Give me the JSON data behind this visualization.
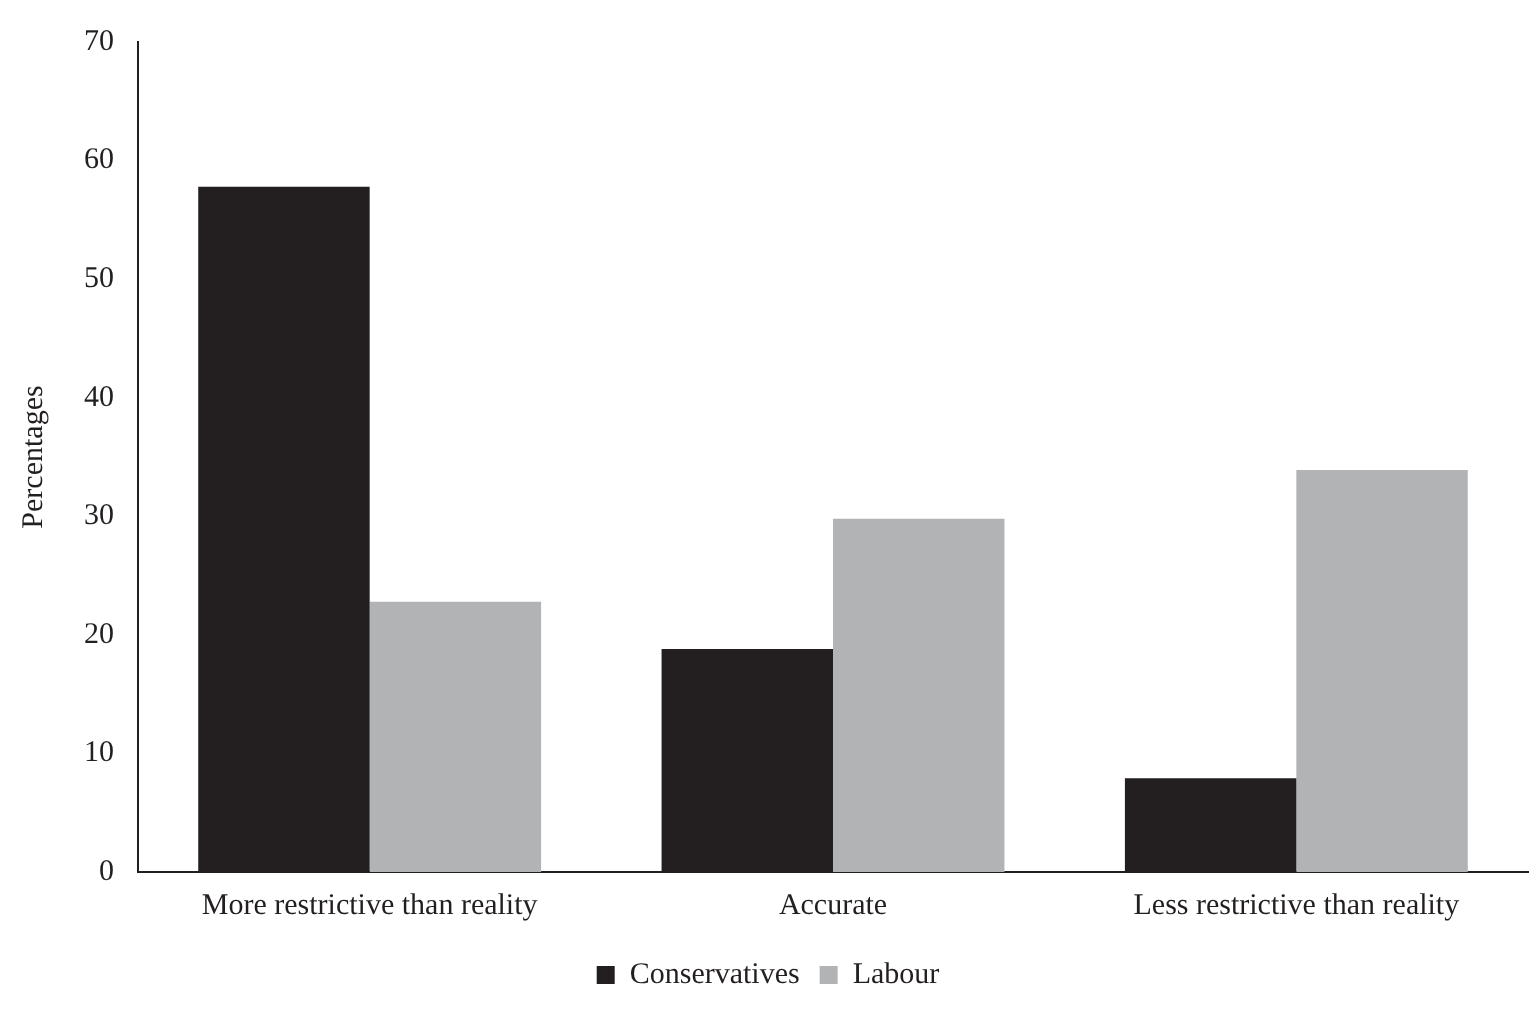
{
  "chart_data": {
    "type": "bar",
    "ylabel": "Percentages",
    "categories": [
      "More restrictive than reality",
      "Accurate",
      "Less restrictive than reality"
    ],
    "series": [
      {
        "name": "Conservatives",
        "color": "#231f20",
        "values": [
          57.8,
          18.8,
          7.9
        ]
      },
      {
        "name": "Labour",
        "color": "#b2b3b5",
        "values": [
          22.8,
          29.8,
          33.9
        ]
      }
    ],
    "ylim": [
      0,
      70
    ],
    "yticks": [
      0,
      10,
      20,
      30,
      40,
      50,
      60,
      70
    ],
    "grid": false,
    "legend": "bottom"
  }
}
